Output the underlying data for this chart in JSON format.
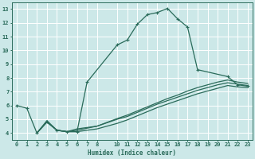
{
  "bg_color": "#cce8e8",
  "grid_color": "#ffffff",
  "line_color": "#2a6b5a",
  "xlim": [
    -0.5,
    23.5
  ],
  "ylim": [
    3.5,
    13.5
  ],
  "xticks": [
    0,
    1,
    2,
    3,
    4,
    5,
    6,
    7,
    8,
    10,
    11,
    12,
    13,
    14,
    15,
    16,
    17,
    18,
    19,
    20,
    21,
    22,
    23
  ],
  "yticks": [
    4,
    5,
    6,
    7,
    8,
    9,
    10,
    11,
    12,
    13
  ],
  "xlabel": "Humidex (Indice chaleur)",
  "curve1_x": [
    0,
    1,
    2,
    3,
    4,
    5,
    6,
    7,
    10,
    11,
    12,
    13,
    14,
    15,
    16,
    17,
    18,
    21,
    22,
    23
  ],
  "curve1_y": [
    6.0,
    5.8,
    4.0,
    4.8,
    4.2,
    4.1,
    4.1,
    7.7,
    10.4,
    10.75,
    11.9,
    12.6,
    12.75,
    13.05,
    12.3,
    11.7,
    8.6,
    8.1,
    7.5,
    7.4
  ],
  "curve2_x": [
    2,
    3,
    4,
    5,
    6,
    7,
    8,
    10,
    11,
    12,
    13,
    14,
    15,
    16,
    17,
    18,
    19,
    20,
    21,
    22,
    23
  ],
  "curve2_y": [
    4.0,
    4.8,
    4.2,
    4.1,
    4.1,
    4.2,
    4.3,
    4.7,
    4.95,
    5.25,
    5.55,
    5.85,
    6.1,
    6.35,
    6.6,
    6.85,
    7.05,
    7.25,
    7.45,
    7.35,
    7.3
  ],
  "curve3_x": [
    2,
    3,
    4,
    5,
    6,
    7,
    8,
    10,
    11,
    12,
    13,
    14,
    15,
    16,
    17,
    18,
    19,
    20,
    21,
    22,
    23
  ],
  "curve3_y": [
    4.0,
    4.8,
    4.2,
    4.1,
    4.3,
    4.4,
    4.5,
    5.0,
    5.2,
    5.5,
    5.8,
    6.1,
    6.35,
    6.6,
    6.85,
    7.1,
    7.3,
    7.5,
    7.65,
    7.55,
    7.45
  ],
  "curve4_x": [
    2,
    3,
    4,
    5,
    6,
    7,
    8,
    10,
    11,
    12,
    13,
    14,
    15,
    16,
    17,
    18,
    19,
    20,
    21,
    22,
    23
  ],
  "curve4_y": [
    4.0,
    4.9,
    4.2,
    4.1,
    4.2,
    4.35,
    4.5,
    5.05,
    5.3,
    5.6,
    5.9,
    6.2,
    6.5,
    6.75,
    7.05,
    7.3,
    7.5,
    7.7,
    7.85,
    7.7,
    7.6
  ]
}
